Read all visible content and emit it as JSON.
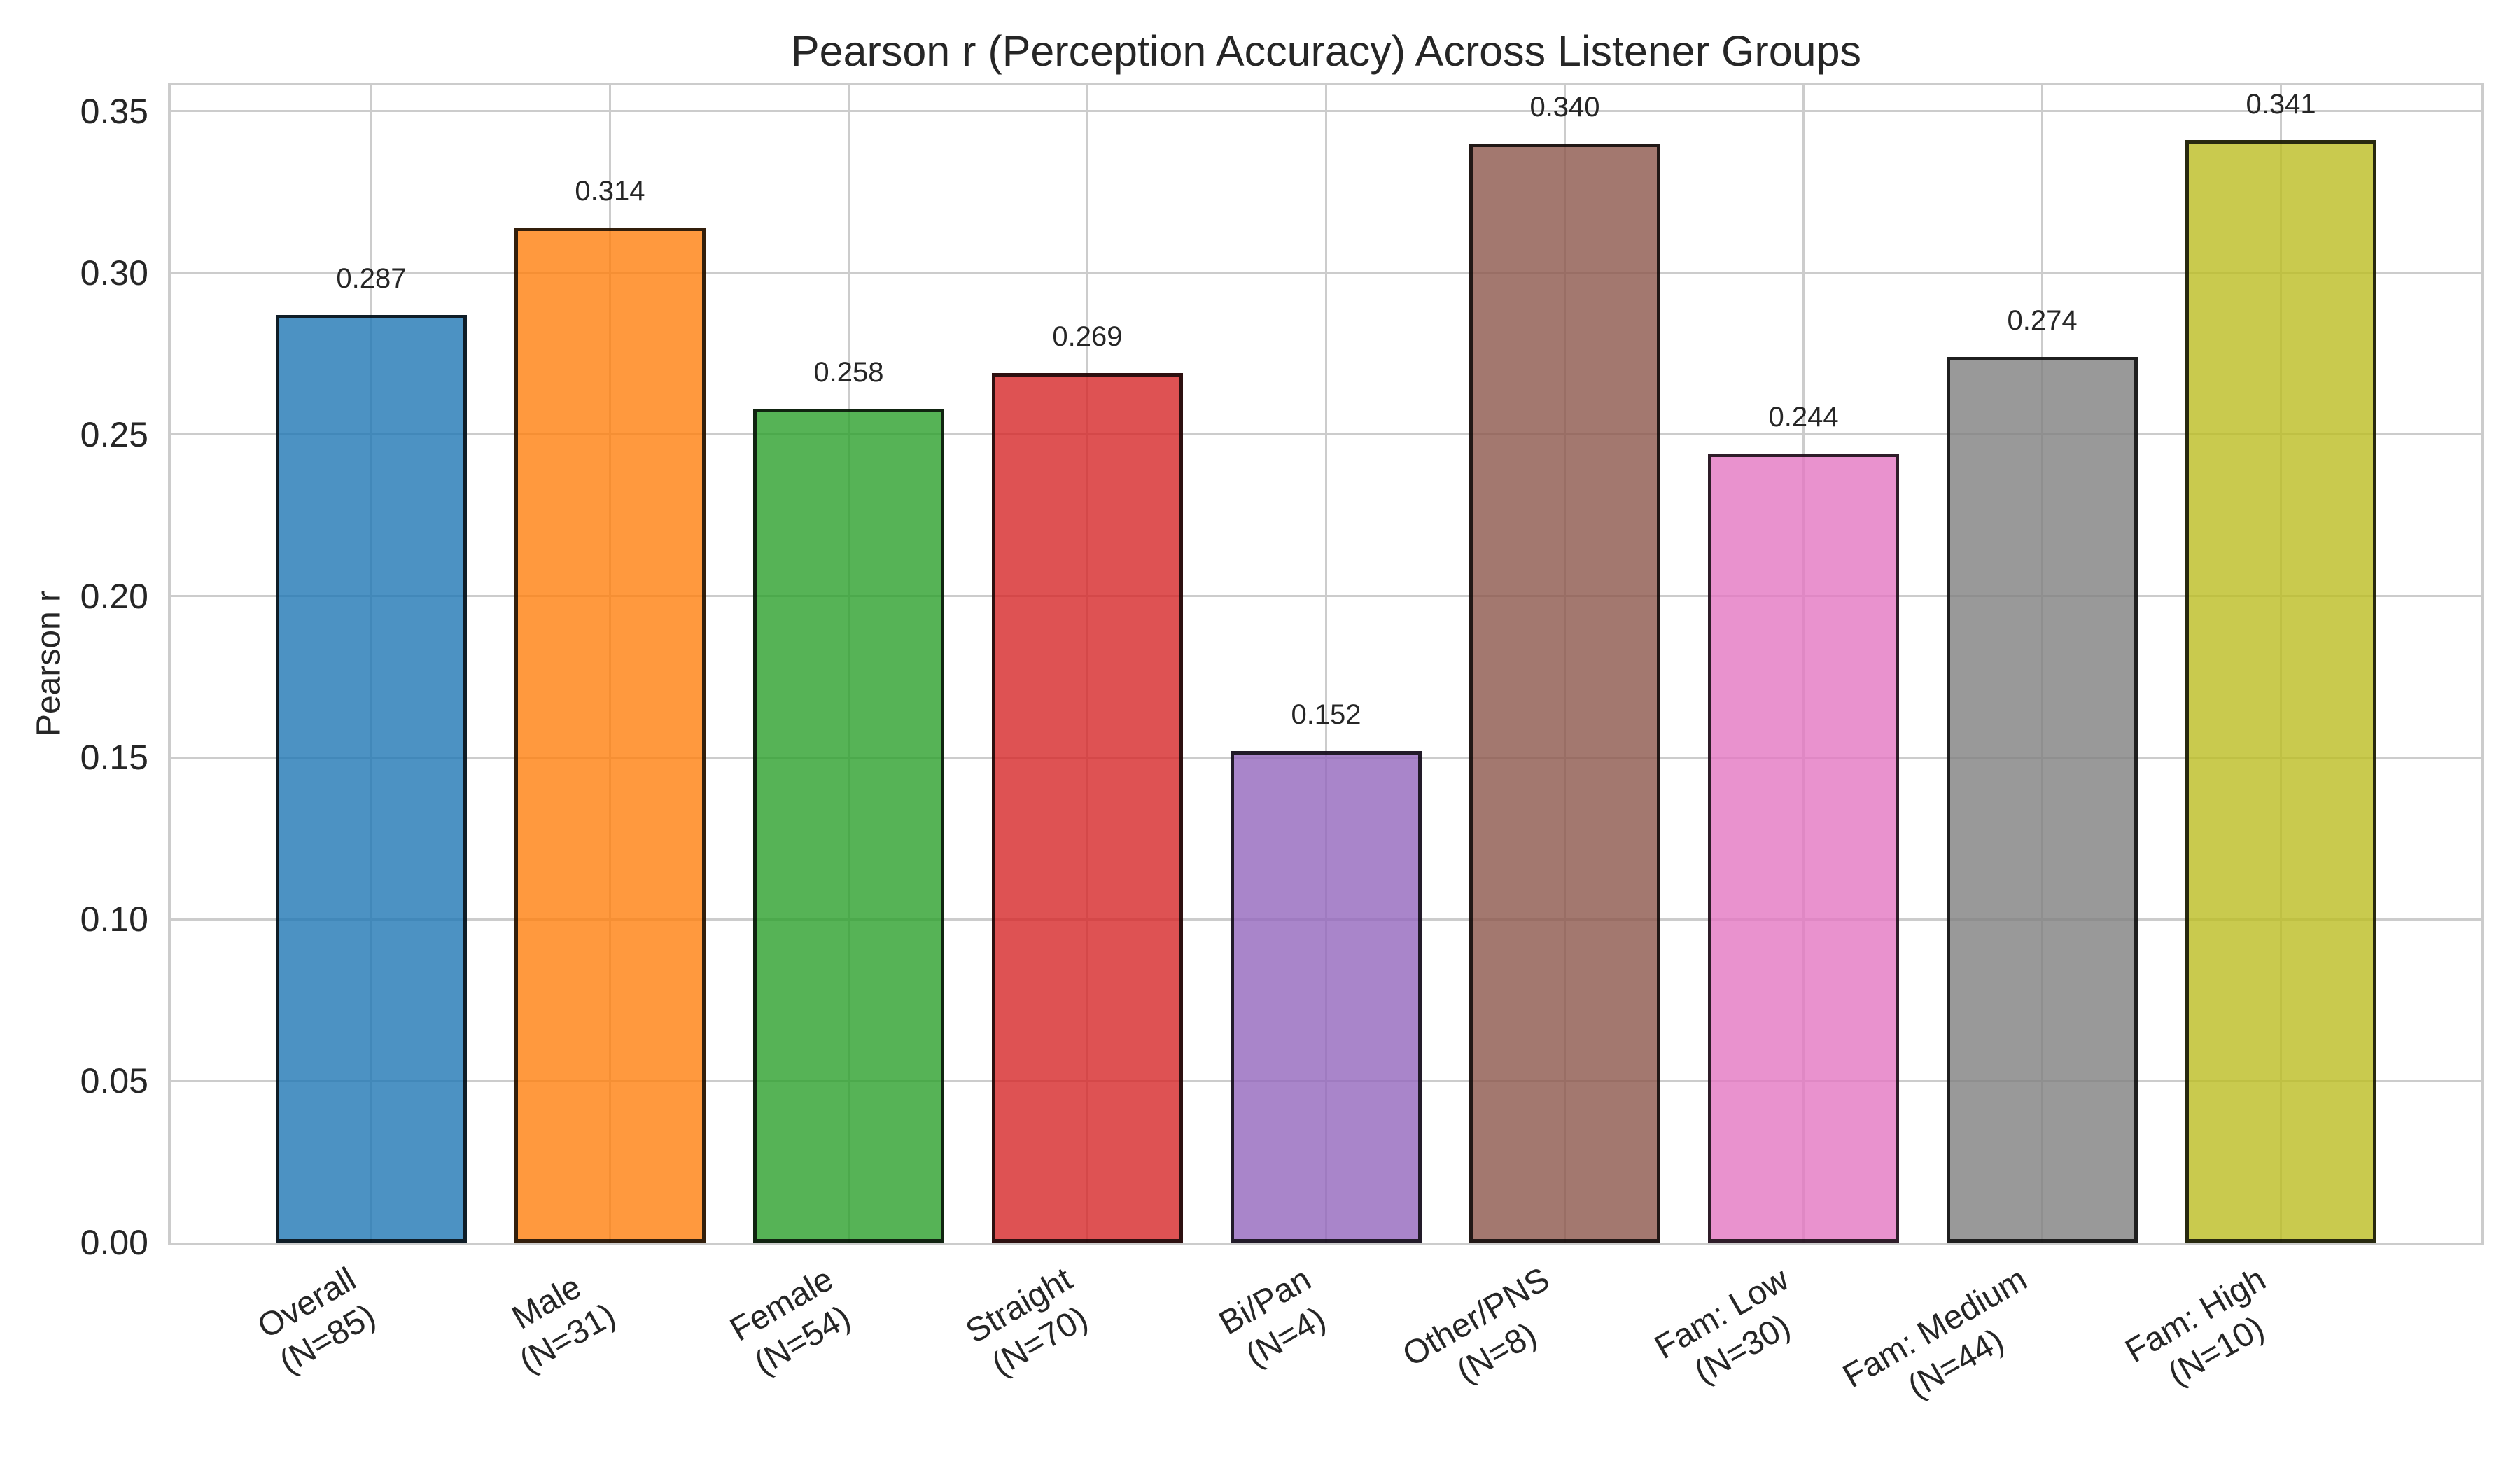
{
  "chart_data": {
    "type": "bar",
    "title": "Pearson r (Perception Accuracy) Across Listener Groups",
    "xlabel": "",
    "ylabel": "Pearson r",
    "categories": [
      "Overall\n(N=85)",
      "Male\n(N=31)",
      "Female\n(N=54)",
      "Straight\n(N=70)",
      "Bi/Pan\n(N=4)",
      "Other/PNS\n(N=8)",
      "Fam: Low\n(N=30)",
      "Fam: Medium\n(N=44)",
      "Fam: High\n(N=10)"
    ],
    "values": [
      0.287,
      0.314,
      0.258,
      0.269,
      0.152,
      0.34,
      0.244,
      0.274,
      0.341
    ],
    "value_labels": [
      "0.287",
      "0.314",
      "0.258",
      "0.269",
      "0.152",
      "0.340",
      "0.244",
      "0.274",
      "0.341"
    ],
    "bar_colors": [
      "#1f77b4",
      "#ff7f0e",
      "#2ca02c",
      "#d62728",
      "#9467bd",
      "#8c564b",
      "#e377c2",
      "#7f7f7f",
      "#bcbd22"
    ],
    "bar_alpha": 0.8,
    "bar_edge_color": "#000000",
    "bar_edge_alpha": 0.8,
    "ylim": [
      0,
      0.358
    ],
    "yticks": [
      0.0,
      0.05,
      0.1,
      0.15,
      0.2,
      0.25,
      0.3,
      0.35
    ],
    "ytick_labels": [
      "0.00",
      "0.05",
      "0.10",
      "0.15",
      "0.20",
      "0.25",
      "0.30",
      "0.35"
    ],
    "xtick_rotation_deg": 30,
    "grid": true,
    "grid_color": "#cccccc",
    "axes_edge_color": "#cccccc",
    "background_color": "#ffffff",
    "text_color": "#262626",
    "legend": "none"
  }
}
